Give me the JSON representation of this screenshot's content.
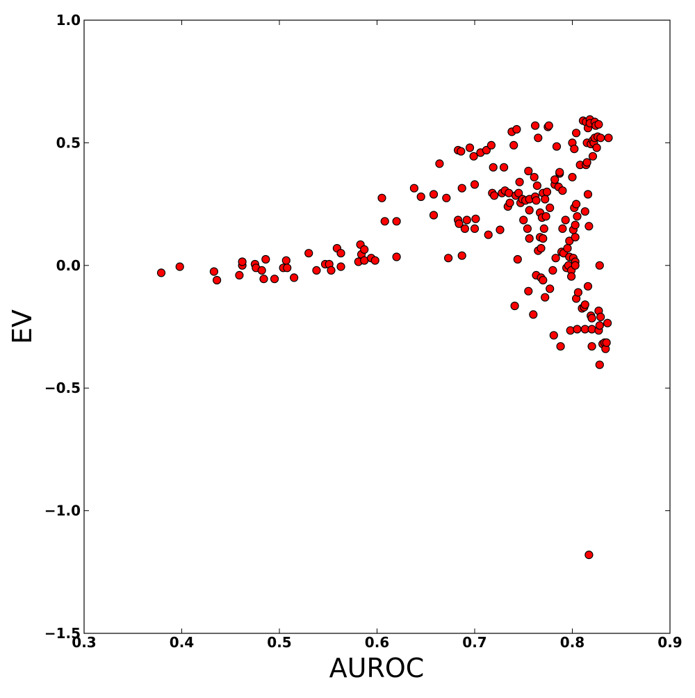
{
  "chart_data": {
    "type": "scatter",
    "xlabel": "AUROC",
    "ylabel": "EV",
    "xlim": [
      0.3,
      0.9
    ],
    "ylim": [
      -1.5,
      1.0
    ],
    "xticks": [
      0.3,
      0.4,
      0.5,
      0.6,
      0.7,
      0.8,
      0.9
    ],
    "yticks": [
      -1.5,
      -1.0,
      -0.5,
      0.0,
      0.5,
      1.0
    ],
    "xtick_labels": [
      "0.3",
      "0.4",
      "0.5",
      "0.6",
      "0.7",
      "0.8",
      "0.9"
    ],
    "ytick_labels": [
      "−1.5",
      "−1.0",
      "−0.5",
      "0.0",
      "0.5",
      "1.0"
    ],
    "grid": false,
    "legend": "none",
    "marker_color": "#ff0000",
    "marker_edge_color": "#000000",
    "points": [
      [
        0.379,
        -0.03
      ],
      [
        0.398,
        -0.005
      ],
      [
        0.433,
        -0.025
      ],
      [
        0.436,
        -0.06
      ],
      [
        0.459,
        -0.04
      ],
      [
        0.462,
        0.0
      ],
      [
        0.462,
        0.015
      ],
      [
        0.475,
        0.005
      ],
      [
        0.476,
        -0.01
      ],
      [
        0.482,
        -0.02
      ],
      [
        0.484,
        -0.055
      ],
      [
        0.486,
        0.025
      ],
      [
        0.495,
        -0.055
      ],
      [
        0.504,
        -0.01
      ],
      [
        0.507,
        0.02
      ],
      [
        0.508,
        -0.01
      ],
      [
        0.515,
        -0.05
      ],
      [
        0.53,
        0.05
      ],
      [
        0.538,
        -0.02
      ],
      [
        0.547,
        0.005
      ],
      [
        0.551,
        0.005
      ],
      [
        0.553,
        -0.02
      ],
      [
        0.559,
        0.07
      ],
      [
        0.563,
        0.05
      ],
      [
        0.563,
        -0.005
      ],
      [
        0.581,
        0.015
      ],
      [
        0.583,
        0.085
      ],
      [
        0.584,
        0.045
      ],
      [
        0.587,
        0.065
      ],
      [
        0.587,
        0.02
      ],
      [
        0.594,
        0.03
      ],
      [
        0.598,
        0.02
      ],
      [
        0.605,
        0.275
      ],
      [
        0.608,
        0.18
      ],
      [
        0.62,
        0.18
      ],
      [
        0.62,
        0.035
      ],
      [
        0.638,
        0.315
      ],
      [
        0.645,
        0.28
      ],
      [
        0.658,
        0.29
      ],
      [
        0.658,
        0.205
      ],
      [
        0.664,
        0.415
      ],
      [
        0.671,
        0.275
      ],
      [
        0.673,
        0.03
      ],
      [
        0.683,
        0.47
      ],
      [
        0.683,
        0.185
      ],
      [
        0.684,
        0.17
      ],
      [
        0.686,
        0.465
      ],
      [
        0.687,
        0.315
      ],
      [
        0.687,
        0.04
      ],
      [
        0.69,
        0.15
      ],
      [
        0.692,
        0.185
      ],
      [
        0.695,
        0.48
      ],
      [
        0.699,
        0.445
      ],
      [
        0.7,
        0.33
      ],
      [
        0.7,
        0.15
      ],
      [
        0.701,
        0.19
      ],
      [
        0.706,
        0.46
      ],
      [
        0.712,
        0.47
      ],
      [
        0.714,
        0.125
      ],
      [
        0.717,
        0.49
      ],
      [
        0.718,
        0.295
      ],
      [
        0.719,
        0.4
      ],
      [
        0.72,
        0.285
      ],
      [
        0.726,
        0.145
      ],
      [
        0.728,
        0.295
      ],
      [
        0.73,
        0.4
      ],
      [
        0.731,
        0.305
      ],
      [
        0.734,
        0.24
      ],
      [
        0.735,
        0.295
      ],
      [
        0.736,
        0.255
      ],
      [
        0.738,
        0.545
      ],
      [
        0.74,
        0.49
      ],
      [
        0.741,
        -0.165
      ],
      [
        0.742,
        0.285
      ],
      [
        0.743,
        0.555
      ],
      [
        0.744,
        0.025
      ],
      [
        0.745,
        0.295
      ],
      [
        0.746,
        0.34
      ],
      [
        0.747,
        0.255
      ],
      [
        0.749,
        0.27
      ],
      [
        0.75,
        0.185
      ],
      [
        0.752,
        0.265
      ],
      [
        0.754,
        0.15
      ],
      [
        0.755,
        0.385
      ],
      [
        0.755,
        -0.105
      ],
      [
        0.756,
        0.27
      ],
      [
        0.756,
        0.225
      ],
      [
        0.756,
        0.11
      ],
      [
        0.76,
        -0.2
      ],
      [
        0.761,
        0.36
      ],
      [
        0.762,
        0.57
      ],
      [
        0.762,
        0.28
      ],
      [
        0.763,
        0.265
      ],
      [
        0.763,
        -0.04
      ],
      [
        0.764,
        0.325
      ],
      [
        0.765,
        0.52
      ],
      [
        0.765,
        0.06
      ],
      [
        0.767,
        0.215
      ],
      [
        0.767,
        0.115
      ],
      [
        0.768,
        0.07
      ],
      [
        0.768,
        -0.05
      ],
      [
        0.769,
        0.195
      ],
      [
        0.77,
        0.295
      ],
      [
        0.77,
        0.11
      ],
      [
        0.77,
        -0.06
      ],
      [
        0.771,
        0.15
      ],
      [
        0.772,
        0.27
      ],
      [
        0.772,
        -0.13
      ],
      [
        0.773,
        0.2
      ],
      [
        0.774,
        0.3
      ],
      [
        0.775,
        0.565
      ],
      [
        0.776,
        0.57
      ],
      [
        0.777,
        0.235
      ],
      [
        0.777,
        -0.095
      ],
      [
        0.78,
        -0.02
      ],
      [
        0.781,
        -0.285
      ],
      [
        0.782,
        0.33
      ],
      [
        0.782,
        0.35
      ],
      [
        0.783,
        0.03
      ],
      [
        0.784,
        0.485
      ],
      [
        0.786,
        0.32
      ],
      [
        0.787,
        0.375
      ],
      [
        0.787,
        0.38
      ],
      [
        0.788,
        -0.33
      ],
      [
        0.789,
        0.055
      ],
      [
        0.79,
        0.305
      ],
      [
        0.79,
        0.15
      ],
      [
        0.791,
        0.05
      ],
      [
        0.793,
        0.185
      ],
      [
        0.794,
        -0.01
      ],
      [
        0.795,
        0.07
      ],
      [
        0.796,
        0.0
      ],
      [
        0.797,
        0.035
      ],
      [
        0.797,
        0.1
      ],
      [
        0.798,
        -0.265
      ],
      [
        0.799,
        -0.02
      ],
      [
        0.799,
        -0.045
      ],
      [
        0.8,
        0.5
      ],
      [
        0.8,
        0.36
      ],
      [
        0.801,
        0.145
      ],
      [
        0.801,
        0.03
      ],
      [
        0.802,
        0.475
      ],
      [
        0.802,
        0.235
      ],
      [
        0.803,
        0.165
      ],
      [
        0.803,
        0.115
      ],
      [
        0.803,
        0.015
      ],
      [
        0.803,
        0.0
      ],
      [
        0.804,
        0.54
      ],
      [
        0.804,
        0.25
      ],
      [
        0.804,
        -0.135
      ],
      [
        0.805,
        0.2
      ],
      [
        0.805,
        -0.26
      ],
      [
        0.806,
        -0.11
      ],
      [
        0.808,
        0.41
      ],
      [
        0.81,
        -0.175
      ],
      [
        0.811,
        0.59
      ],
      [
        0.812,
        -0.17
      ],
      [
        0.813,
        0.22
      ],
      [
        0.813,
        -0.16
      ],
      [
        0.813,
        -0.26
      ],
      [
        0.814,
        0.585
      ],
      [
        0.814,
        0.41
      ],
      [
        0.815,
        0.42
      ],
      [
        0.815,
        0.5
      ],
      [
        0.816,
        0.56
      ],
      [
        0.816,
        0.29
      ],
      [
        0.816,
        -0.085
      ],
      [
        0.817,
        0.16
      ],
      [
        0.817,
        -1.18
      ],
      [
        0.818,
        0.595
      ],
      [
        0.818,
        0.58
      ],
      [
        0.819,
        -0.205
      ],
      [
        0.819,
        0.495
      ],
      [
        0.82,
        -0.215
      ],
      [
        0.82,
        -0.26
      ],
      [
        0.82,
        -0.33
      ],
      [
        0.821,
        0.445
      ],
      [
        0.821,
        0.51
      ],
      [
        0.822,
        0.5
      ],
      [
        0.823,
        0.52
      ],
      [
        0.823,
        0.585
      ],
      [
        0.824,
        0.57
      ],
      [
        0.825,
        0.48
      ],
      [
        0.826,
        0.525
      ],
      [
        0.827,
        0.575
      ],
      [
        0.827,
        -0.265
      ],
      [
        0.827,
        -0.185
      ],
      [
        0.828,
        0.0
      ],
      [
        0.828,
        -0.405
      ],
      [
        0.828,
        -0.245
      ],
      [
        0.829,
        0.52
      ],
      [
        0.829,
        -0.21
      ],
      [
        0.831,
        -0.32
      ],
      [
        0.833,
        -0.315
      ],
      [
        0.834,
        -0.34
      ],
      [
        0.835,
        -0.315
      ],
      [
        0.836,
        -0.235
      ],
      [
        0.837,
        0.52
      ]
    ]
  }
}
